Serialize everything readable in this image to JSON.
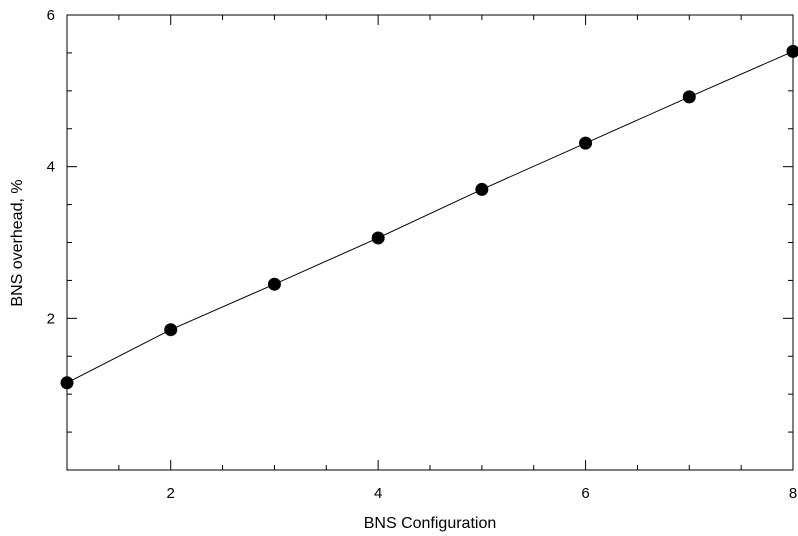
{
  "chart_data": {
    "type": "line",
    "title": "",
    "xlabel": "BNS Configuration",
    "ylabel": "BNS overhead, %",
    "xlim": [
      1,
      8
    ],
    "ylim": [
      0,
      6
    ],
    "x_major_ticks": [
      2,
      4,
      6,
      8
    ],
    "y_major_ticks": [
      2,
      4,
      6
    ],
    "x_tick_labels": [
      "2",
      "4",
      "6",
      "8"
    ],
    "y_tick_labels": [
      "2",
      "4",
      "6"
    ],
    "grid": false,
    "series": [
      {
        "x": [
          1,
          2,
          3,
          4,
          5,
          6,
          7,
          8
        ],
        "values": [
          1.15,
          1.85,
          2.45,
          3.06,
          3.7,
          4.31,
          4.92,
          5.52
        ],
        "marker": "circle",
        "color": "#000000"
      }
    ]
  }
}
